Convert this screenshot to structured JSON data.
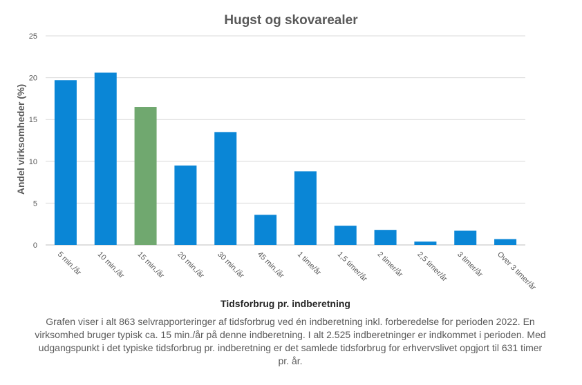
{
  "chart_data": {
    "type": "bar",
    "title": "Hugst og skovarealer",
    "xlabel": "Tidsforbrug pr. indberetning",
    "ylabel": "Andel virksomheder (%)",
    "ylim": [
      0,
      25
    ],
    "yticks": [
      "0",
      "5",
      "10",
      "15",
      "20",
      "25"
    ],
    "grid": true,
    "categories": [
      "5 min./år",
      "10 min./år",
      "15 min./år",
      "20 min./år",
      "30 min./år",
      "45 min./år",
      "1 time/år",
      "1,5 timer/år",
      "2 timer/år",
      "2,5 timer/år",
      "3 timer/år",
      "Over 3 timer/år"
    ],
    "values": [
      19.7,
      20.6,
      16.5,
      9.5,
      13.5,
      3.6,
      8.8,
      2.3,
      1.8,
      0.4,
      1.7,
      0.7
    ],
    "bar_colors": [
      "#0a86d6",
      "#0a86d6",
      "#70a86f",
      "#0a86d6",
      "#0a86d6",
      "#0a86d6",
      "#0a86d6",
      "#0a86d6",
      "#0a86d6",
      "#0a86d6",
      "#0a86d6",
      "#0a86d6"
    ]
  },
  "caption": "Grafen viser i alt 863 selvrapporteringer af tidsforbrug ved én indberetning inkl. forberedelse for perioden 2022. En virksomhed bruger typisk ca. 15 min./år på denne indberetning. I alt 2.525 indberetninger er indkommet i perioden. Med udgangspunkt i det typiske tidsforbrug pr. indberetning er det samlede tidsforbrug for erhvervslivet opgjort til 631 timer pr. år.",
  "colors": {
    "bar": "#0a86d6",
    "highlight": "#70a86f",
    "text": "#595959",
    "grid": "#d9d9d9"
  }
}
